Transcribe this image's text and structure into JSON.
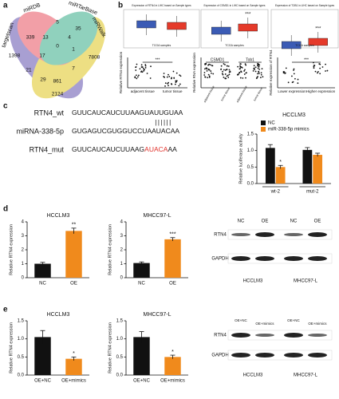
{
  "panel_a": {
    "label": "a",
    "sets": [
      "miRDB",
      "miRTarBase",
      "miRWalk",
      "targetscan"
    ],
    "counts": [
      1398,
      339,
      5,
      35,
      7808,
      13,
      4,
      21,
      0,
      1,
      17,
      7,
      29,
      861,
      2124
    ]
  },
  "panel_b": {
    "label": "b",
    "tcga": [
      {
        "title": "Expression of RTN4 in LIHC based on Sample types",
        "xlabel": "TCGA samples"
      },
      {
        "title": "Expression of CSMD1 in LIHC based on Sample types",
        "xlabel": "TCGA samples",
        "annotation": "***"
      },
      {
        "title": "Expression of TOB1 in LIHC based on Sample types",
        "xlabel": "TCGA samples",
        "annotation": "***"
      }
    ],
    "scatter": [
      {
        "ylabel": "Relative RTN4 expression",
        "categories": [
          "adjacent tissue",
          "tumor tissue"
        ],
        "annotation": "***"
      },
      {
        "ylabel": "Relative RNA expression",
        "genes": [
          "CSMD1",
          "Tob1"
        ],
        "categories": [
          "adjacent tissue",
          "tumor tissue",
          "adjacent tissue",
          "tumor tissue"
        ]
      },
      {
        "ylabel": "Relative expression of RTN4",
        "categories": [
          "Lower expression",
          "Higher expression"
        ],
        "annotation": "***"
      }
    ]
  },
  "panel_c": {
    "label": "c",
    "sequences": [
      {
        "name": "RTN4_wt",
        "parts": [
          "GUUCAUCAUCUUAAGUAUUGUAA"
        ]
      },
      {
        "name": "miRNA-338-5p",
        "parts": [
          "GUGAGUCGUGGUCCUAAUACAA"
        ]
      },
      {
        "name": "RTN4_mut",
        "parts": [
          "GUUCAUCAUCUUAAG",
          "AUACA",
          "AA"
        ]
      }
    ],
    "pairing": "||||||",
    "chart": {
      "title": "HCCLM3",
      "ylabel": "Relative luciferase activity",
      "categories": [
        "wt-2",
        "mut-2"
      ],
      "series": [
        {
          "name": "NC",
          "color": "#111111",
          "values": [
            1.08,
            1.02
          ],
          "errors": [
            0.1,
            0.07
          ]
        },
        {
          "name": "miR-338-5p mimics",
          "color": "#f08a1c",
          "values": [
            0.5,
            0.87
          ],
          "errors": [
            0.05,
            0.05
          ]
        }
      ],
      "ylim": [
        0,
        1.5
      ],
      "yticks": [
        {
          "value": 0,
          "label": "0.0"
        },
        0.5,
        {
          "value": 1,
          "label": "1.0"
        },
        1.5
      ],
      "annotation": "*"
    }
  },
  "panel_d": {
    "label": "d",
    "charts": [
      {
        "title": "HCCLM3",
        "ylabel": "Relative RTN4 expression",
        "categories": [
          "NC",
          "OE"
        ],
        "series": [
          {
            "colors": [
              "#111111",
              "#f08a1c"
            ],
            "values": [
              1.0,
              3.35
            ],
            "errors": [
              0.1,
              0.2
            ]
          }
        ],
        "ylim": [
          0,
          4
        ],
        "yticks": [
          0,
          1,
          2,
          3,
          4
        ],
        "annotation": "**"
      },
      {
        "title": "MHCC97-L",
        "ylabel": "Relative RTN4 expression",
        "categories": [
          "NC",
          "OE"
        ],
        "series": [
          {
            "colors": [
              "#111111",
              "#f08a1c"
            ],
            "values": [
              1.05,
              2.75
            ],
            "errors": [
              0.08,
              0.12
            ]
          }
        ],
        "ylim": [
          0,
          4
        ],
        "yticks": [
          0,
          1,
          2,
          3,
          4
        ],
        "annotation": "***"
      }
    ],
    "blot": {
      "lanes": [
        "NC",
        "OE",
        "NC",
        "OE"
      ],
      "proteins": [
        "RTN4",
        "GAPDH"
      ],
      "cells": [
        "HCCLM3",
        "MHCC97-L"
      ]
    }
  },
  "panel_e": {
    "label": "e",
    "charts": [
      {
        "title": "HCCLM3",
        "ylabel": "Relative RTN4 expression",
        "categories": [
          "OE+NC",
          "OE+mimics"
        ],
        "series": [
          {
            "colors": [
              "#111111",
              "#f08a1c"
            ],
            "values": [
              1.05,
              0.45
            ],
            "errors": [
              0.18,
              0.05
            ]
          }
        ],
        "ylim": [
          0,
          1.5
        ],
        "yticks": [
          {
            "value": 0,
            "label": "0.0"
          },
          0.5,
          {
            "value": 1,
            "label": "1.0"
          },
          1.5
        ],
        "annotation": "*"
      },
      {
        "title": "MHCC97-L",
        "ylabel": "Relative RTN4 expression",
        "categories": [
          "OE+NC",
          "OE+mimics"
        ],
        "series": [
          {
            "colors": [
              "#111111",
              "#f08a1c"
            ],
            "values": [
              1.05,
              0.5
            ],
            "errors": [
              0.15,
              0.05
            ]
          }
        ],
        "ylim": [
          0,
          1.5
        ],
        "yticks": [
          {
            "value": 0,
            "label": "0.0"
          },
          0.5,
          {
            "value": 1,
            "label": "1.0"
          },
          1.5
        ],
        "annotation": "*"
      }
    ],
    "blot": {
      "lanes": [
        "OE+NC",
        "OE+mimics",
        "OE+NC",
        "OE+mimics"
      ],
      "proteins": [
        "RTN4",
        "GAPDH"
      ],
      "cells": [
        "HCCLM3",
        "MHCC97-L"
      ]
    }
  }
}
